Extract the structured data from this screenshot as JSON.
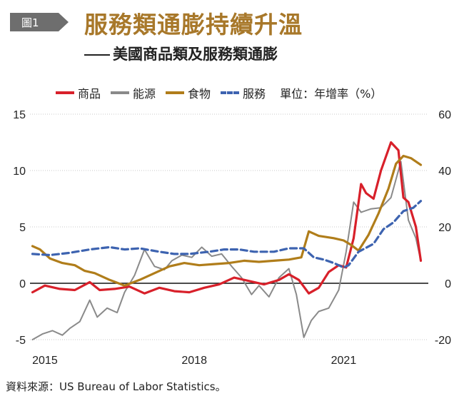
{
  "figure_label": "圖1",
  "title": "服務類通膨持續升溫",
  "subtitle": "美國商品類及服務類通膨",
  "source": "資料來源：US Bureau of Labor Statistics。",
  "colors": {
    "goods": "#d8202a",
    "energy": "#8a8a8a",
    "food": "#b07d1a",
    "services": "#3d63b0",
    "accent": "#a8782a"
  },
  "chart_data": {
    "type": "line",
    "unit_label": "單位：年增率（%）",
    "legend_position": "top",
    "x_ticks": [
      "2015",
      "2018",
      "2021"
    ],
    "x_tick_values": [
      2015.0,
      2018.0,
      2021.0
    ],
    "xlim": [
      2014.7,
      2022.7
    ],
    "y_left_ticks": [
      "15",
      "10",
      "5",
      "0",
      "-5"
    ],
    "y_right_ticks": [
      "60",
      "40",
      "20",
      "0",
      "-20"
    ],
    "ylim_left": [
      -5,
      15
    ],
    "ylim_right": [
      -20,
      60
    ],
    "series": [
      {
        "name": "商品",
        "axis": "left",
        "style": "solid",
        "x": [
          2014.75,
          2015.0,
          2015.3,
          2015.6,
          2015.9,
          2016.1,
          2016.4,
          2016.7,
          2017.0,
          2017.3,
          2017.6,
          2017.9,
          2018.2,
          2018.5,
          2018.8,
          2019.1,
          2019.4,
          2019.7,
          2019.9,
          2020.1,
          2020.3,
          2020.5,
          2020.7,
          2020.9,
          2021.05,
          2021.2,
          2021.35,
          2021.45,
          2021.6,
          2021.75,
          2021.95,
          2022.1,
          2022.2,
          2022.3,
          2022.45,
          2022.55
        ],
        "y": [
          -0.8,
          -0.2,
          -0.5,
          -0.6,
          0.1,
          -0.6,
          -0.5,
          -0.3,
          -0.9,
          -0.4,
          -0.7,
          -0.8,
          -0.4,
          -0.1,
          0.5,
          0.2,
          -0.1,
          0.3,
          0.8,
          0.3,
          -0.9,
          -0.4,
          1.0,
          1.6,
          1.4,
          4.0,
          8.8,
          8.0,
          7.5,
          10.0,
          12.5,
          11.8,
          7.6,
          7.2,
          5.0,
          2.0
        ]
      },
      {
        "name": "能源",
        "axis": "left",
        "style": "solid",
        "x": [
          2014.75,
          2014.95,
          2015.15,
          2015.35,
          2015.5,
          2015.7,
          2015.9,
          2016.05,
          2016.25,
          2016.45,
          2016.6,
          2016.8,
          2017.0,
          2017.2,
          2017.4,
          2017.55,
          2017.75,
          2017.95,
          2018.15,
          2018.35,
          2018.55,
          2018.75,
          2018.95,
          2019.15,
          2019.3,
          2019.5,
          2019.7,
          2019.9,
          2020.05,
          2020.2,
          2020.35,
          2020.5,
          2020.7,
          2020.9,
          2021.05,
          2021.2,
          2021.35,
          2021.55,
          2021.75,
          2021.95,
          2022.15,
          2022.3,
          2022.45,
          2022.55
        ],
        "y": [
          -5.0,
          -4.5,
          -4.2,
          -4.6,
          -4.0,
          -3.4,
          -1.5,
          -3.0,
          -2.2,
          -2.6,
          -0.8,
          0.7,
          3.0,
          1.5,
          1.2,
          2.0,
          2.5,
          2.3,
          3.2,
          2.4,
          2.6,
          1.5,
          0.5,
          -1.0,
          -0.2,
          -1.2,
          0.5,
          1.3,
          -1.0,
          -4.8,
          -3.3,
          -2.5,
          -2.2,
          -0.6,
          2.8,
          7.2,
          6.3,
          6.6,
          6.7,
          7.6,
          10.8,
          5.6,
          4.0,
          2.0
        ]
      },
      {
        "name": "食物",
        "axis": "left",
        "style": "solid",
        "x": [
          2014.75,
          2014.9,
          2015.1,
          2015.35,
          2015.6,
          2015.8,
          2016.0,
          2016.3,
          2016.6,
          2016.9,
          2017.2,
          2017.5,
          2017.8,
          2018.1,
          2018.4,
          2018.7,
          2019.0,
          2019.3,
          2019.6,
          2019.9,
          2020.15,
          2020.3,
          2020.5,
          2020.8,
          2021.0,
          2021.15,
          2021.3,
          2021.5,
          2021.7,
          2021.9,
          2022.05,
          2022.2,
          2022.35,
          2022.55
        ],
        "y": [
          3.3,
          3.0,
          2.2,
          1.8,
          1.6,
          1.1,
          0.9,
          0.3,
          -0.2,
          0.3,
          0.9,
          1.5,
          1.8,
          1.6,
          1.7,
          1.8,
          2.0,
          1.9,
          2.0,
          2.1,
          2.3,
          4.6,
          4.2,
          4.0,
          3.8,
          3.4,
          2.9,
          4.3,
          6.2,
          8.4,
          10.6,
          11.3,
          11.1,
          10.5
        ]
      },
      {
        "name": "服務",
        "axis": "left",
        "style": "dashed",
        "x": [
          2014.75,
          2015.1,
          2015.5,
          2015.9,
          2016.3,
          2016.6,
          2016.9,
          2017.3,
          2017.6,
          2017.9,
          2018.3,
          2018.6,
          2018.9,
          2019.2,
          2019.6,
          2019.9,
          2020.2,
          2020.4,
          2020.6,
          2020.8,
          2021.0,
          2021.1,
          2021.3,
          2021.6,
          2021.8,
          2022.0,
          2022.2,
          2022.4,
          2022.55
        ],
        "y": [
          2.6,
          2.5,
          2.7,
          3.0,
          3.2,
          3.0,
          3.1,
          2.8,
          2.6,
          2.6,
          2.8,
          3.0,
          3.0,
          2.8,
          2.8,
          3.1,
          3.1,
          2.3,
          2.1,
          1.8,
          1.4,
          1.6,
          2.8,
          3.5,
          4.8,
          5.4,
          6.4,
          6.7,
          7.3
        ]
      }
    ]
  }
}
